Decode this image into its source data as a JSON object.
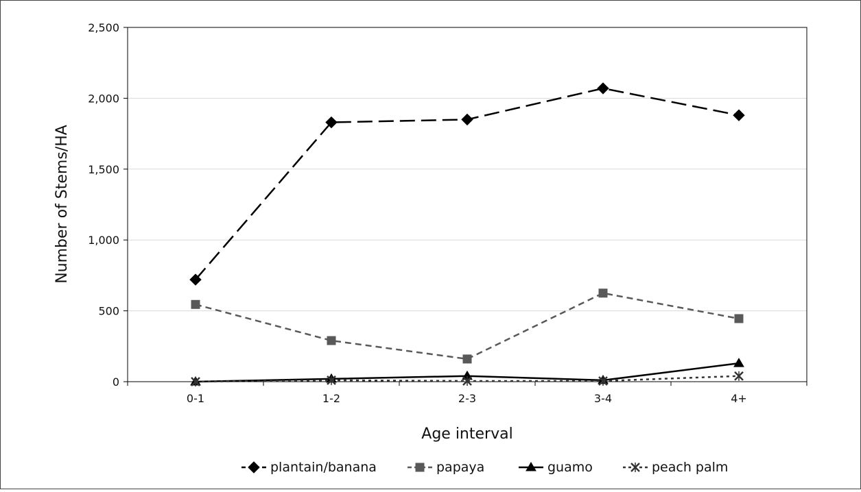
{
  "chart_data": {
    "type": "line",
    "xlabel": "Age interval",
    "ylabel": "Number of Stems/HA",
    "categories": [
      "0-1",
      "1-2",
      "2-3",
      "3-4",
      "4+"
    ],
    "ylim": [
      0,
      2500
    ],
    "yticks": [
      0,
      500,
      1000,
      1500,
      2000,
      2500
    ],
    "ytick_labels": [
      "0",
      "500",
      "1,000",
      "1,500",
      "2,000",
      "2,500"
    ],
    "grid": "horizontal",
    "legend_position": "bottom",
    "series": [
      {
        "name": "plantain/banana",
        "values": [
          720,
          1830,
          1850,
          2070,
          1880
        ],
        "color": "#000000",
        "marker": "diamond",
        "dash": "long-dash"
      },
      {
        "name": "papaya",
        "values": [
          545,
          290,
          160,
          625,
          445
        ],
        "color": "#595959",
        "marker": "square",
        "dash": "short-dash"
      },
      {
        "name": "guamo",
        "values": [
          0,
          20,
          40,
          10,
          130
        ],
        "color": "#000000",
        "marker": "triangle",
        "dash": "solid"
      },
      {
        "name": "peach palm",
        "values": [
          0,
          10,
          5,
          5,
          40
        ],
        "color": "#333333",
        "marker": "x-star",
        "dash": "dotted"
      }
    ]
  }
}
